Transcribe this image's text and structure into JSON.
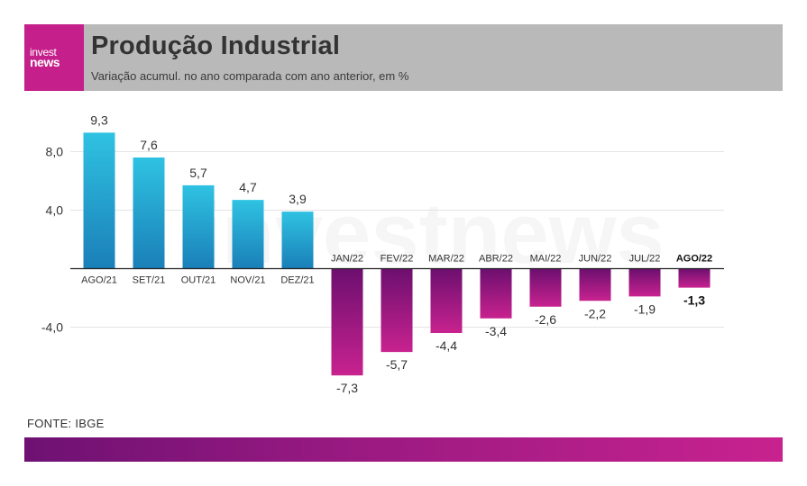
{
  "brand": {
    "logo_line1": "invest",
    "logo_line2": "news",
    "watermark": "investnews"
  },
  "header": {
    "title": "Produção Industrial",
    "subtitle": "Variação acumul. no ano comparada com ano anterior, em %"
  },
  "source": "FONTE: IBGE",
  "colors": {
    "positive_bar": "#27b5da",
    "negative_bar": "#9b1a80",
    "header_bg": "#b9b9b9",
    "brand": "#c41f8a"
  },
  "chart_data": {
    "type": "bar",
    "categories": [
      "AGO/21",
      "SET/21",
      "OUT/21",
      "NOV/21",
      "DEZ/21",
      "JAN/22",
      "FEV/22",
      "MAR/22",
      "ABR/22",
      "MAI/22",
      "JUN/22",
      "JUL/22",
      "AGO/22"
    ],
    "values": [
      9.3,
      7.6,
      5.7,
      4.7,
      3.9,
      -7.3,
      -5.7,
      -4.4,
      -3.4,
      -2.6,
      -2.2,
      -1.9,
      -1.3
    ],
    "value_labels": [
      "9,3",
      "7,6",
      "5,7",
      "4,7",
      "3,9",
      "-7,3",
      "-5,7",
      "-4,4",
      "-3,4",
      "-2,6",
      "-2,2",
      "-1,9",
      "-1,3"
    ],
    "highlight_category": "AGO/22",
    "yticks": [
      8.0,
      4.0,
      -4.0
    ],
    "ytick_labels": [
      "8,0",
      "4,0",
      "-4,0"
    ],
    "ylim": [
      -8,
      10
    ],
    "grid": true,
    "xlabel": "",
    "ylabel": ""
  }
}
